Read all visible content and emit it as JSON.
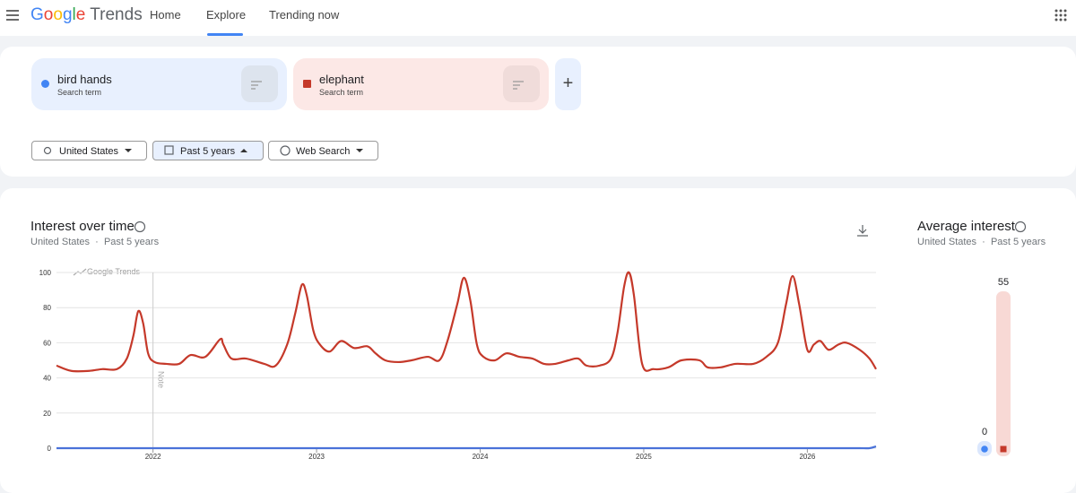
{
  "nav": {
    "logo_google": "Google",
    "logo_trends": "Trends",
    "tabs": [
      "Home",
      "Explore",
      "Trending now"
    ]
  },
  "search_terms": [
    {
      "name": "bird hands",
      "kind": "Search term"
    },
    {
      "name": "elephant",
      "kind": "Search term"
    }
  ],
  "filters": [
    "United States",
    "Past 5 years",
    "Web Search"
  ],
  "chart_data": [
    {
      "type": "line",
      "title": "Interest over time",
      "subtitle_location": "United States",
      "subtitle_period": "Past 5 years",
      "watermark": "Google Trends",
      "annotation": "Note",
      "x": [
        2021.41,
        2021.5,
        2021.61,
        2021.69,
        2021.78,
        2021.84,
        2021.88,
        2021.91,
        2021.94,
        2021.97,
        2022.01,
        2022.08,
        2022.16,
        2022.23,
        2022.32,
        2022.41,
        2022.43,
        2022.48,
        2022.57,
        2022.68,
        2022.75,
        2022.82,
        2022.87,
        2022.91,
        2022.94,
        2022.98,
        2023.02,
        2023.08,
        2023.15,
        2023.23,
        2023.31,
        2023.36,
        2023.42,
        2023.5,
        2023.58,
        2023.68,
        2023.75,
        2023.8,
        2023.86,
        2023.9,
        2023.94,
        2023.98,
        2024.02,
        2024.09,
        2024.16,
        2024.24,
        2024.32,
        2024.39,
        2024.46,
        2024.54,
        2024.6,
        2024.65,
        2024.73,
        2024.8,
        2024.84,
        2024.88,
        2024.91,
        2024.94,
        2024.99,
        2025.06,
        2025.15,
        2025.23,
        2025.34,
        2025.39,
        2025.47,
        2025.56,
        2025.67,
        2025.75,
        2025.82,
        2025.87,
        2025.91,
        2025.95,
        2026.0,
        2026.04,
        2026.08,
        2026.13,
        2026.19,
        2026.24,
        2026.32,
        2026.38,
        2026.42
      ],
      "xlim": [
        2021.41,
        2026.42
      ],
      "xticks": [
        2022,
        2023,
        2024,
        2025,
        2026
      ],
      "ylim": [
        0,
        100
      ],
      "yticks": [
        0,
        20,
        40,
        60,
        80,
        100
      ],
      "grid": true,
      "series": [
        {
          "name": "bird hands",
          "color": "#4a72d9",
          "values": [
            0,
            0,
            0,
            0,
            0,
            0,
            0,
            0,
            0,
            0,
            0,
            0,
            0,
            0,
            0,
            0,
            0,
            0,
            0,
            0,
            0,
            0,
            0,
            0,
            0,
            0,
            0,
            0,
            0,
            0,
            0,
            0,
            0,
            0,
            0,
            0,
            0,
            0,
            0,
            0,
            0,
            0,
            0,
            0,
            0,
            0,
            0,
            0,
            0,
            0,
            0,
            0,
            0,
            0,
            0,
            0,
            0,
            0,
            0,
            0,
            0,
            0,
            0,
            0,
            0,
            0,
            0,
            0,
            0,
            0,
            0,
            0,
            0,
            0,
            0,
            0,
            0,
            0,
            0,
            0,
            1
          ]
        },
        {
          "name": "elephant",
          "color": "#c5392a",
          "values": [
            47,
            44,
            44,
            45,
            45,
            51,
            64,
            78,
            71,
            54,
            49,
            48,
            48,
            53,
            52,
            62,
            59,
            51,
            51,
            48,
            47,
            59,
            77,
            93,
            87,
            67,
            59,
            55,
            61,
            57,
            58,
            54,
            50,
            49,
            50,
            52,
            50,
            61,
            82,
            97,
            84,
            59,
            52,
            50,
            54,
            52,
            51,
            48,
            48,
            50,
            51,
            47,
            47,
            51,
            66,
            92,
            100,
            87,
            48,
            45,
            46,
            50,
            50,
            46,
            46,
            48,
            48,
            52,
            60,
            82,
            98,
            82,
            56,
            59,
            61,
            56,
            59,
            60,
            56,
            51,
            45
          ]
        }
      ]
    },
    {
      "type": "bar",
      "title": "Average interest",
      "subtitle_location": "United States",
      "subtitle_period": "Past 5 years",
      "values": [
        0,
        55
      ],
      "colors": [
        "#4285f4",
        "#c5392a"
      ],
      "ylim": [
        0,
        55
      ]
    }
  ]
}
